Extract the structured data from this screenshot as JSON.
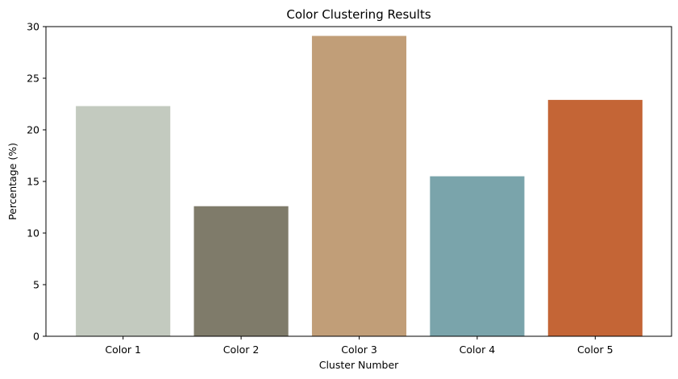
{
  "chart_data": {
    "type": "bar",
    "title": "Color Clustering Results",
    "xlabel": "Cluster Number",
    "ylabel": "Percentage (%)",
    "categories": [
      "Color 1",
      "Color 2",
      "Color 3",
      "Color 4",
      "Color 5"
    ],
    "values": [
      22.3,
      12.6,
      29.1,
      15.5,
      22.9
    ],
    "colors": [
      "#c3cabf",
      "#7f7b6a",
      "#c19e78",
      "#7aa4ab",
      "#c46536"
    ],
    "ylim": [
      0,
      30
    ],
    "yticks": [
      0,
      5,
      10,
      15,
      20,
      25,
      30
    ],
    "grid": false,
    "legend": "none"
  }
}
